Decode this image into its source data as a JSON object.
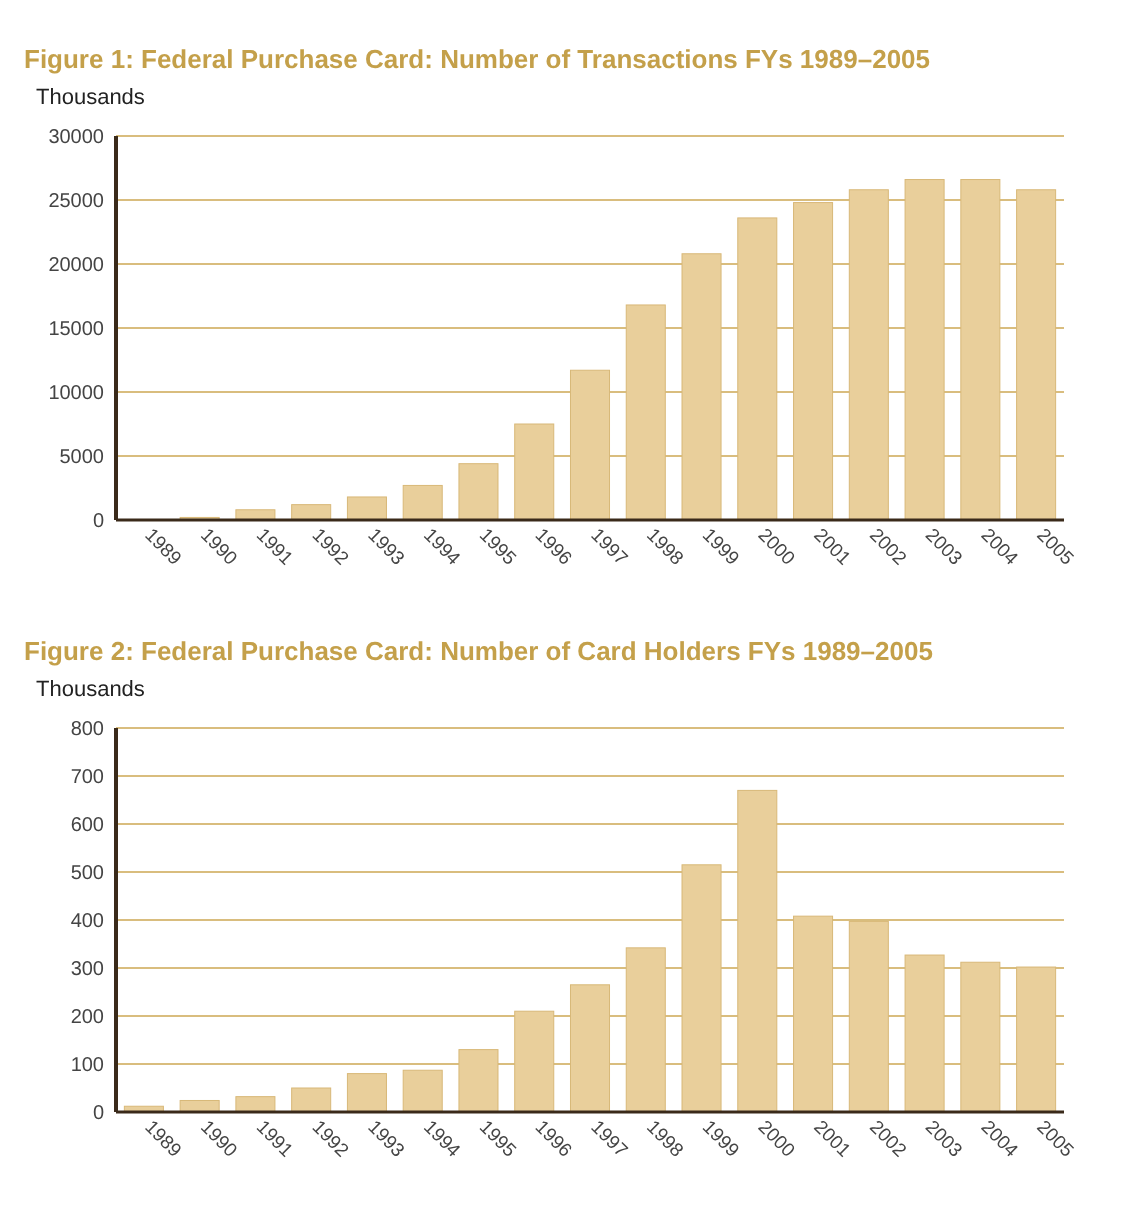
{
  "chart_data": [
    {
      "type": "bar",
      "title": "Figure 1: Federal Purchase Card: Number of Transactions FYs 1989–2005",
      "ylabel": "Thousands",
      "categories": [
        "1989",
        "1990",
        "1991",
        "1992",
        "1993",
        "1994",
        "1995",
        "1996",
        "1997",
        "1998",
        "1999",
        "2000",
        "2001",
        "2002",
        "2003",
        "2004",
        "2005"
      ],
      "values": [
        0,
        200,
        800,
        1200,
        1800,
        2700,
        4400,
        7500,
        11700,
        16800,
        20800,
        23600,
        24800,
        25800,
        26600,
        26600,
        25800
      ],
      "color": "#e9cf9b",
      "ylim": [
        0,
        30000
      ],
      "yticks": [
        0,
        5000,
        10000,
        15000,
        20000,
        25000,
        30000
      ],
      "grid": "y"
    },
    {
      "type": "bar",
      "title": "Figure 2: Federal Purchase Card: Number of Card Holders FYs 1989–2005",
      "ylabel": "Thousands",
      "categories": [
        "1989",
        "1990",
        "1991",
        "1992",
        "1993",
        "1994",
        "1995",
        "1996",
        "1997",
        "1998",
        "1999",
        "2000",
        "2001",
        "2002",
        "2003",
        "2004",
        "2005"
      ],
      "values": [
        12,
        24,
        32,
        50,
        80,
        87,
        130,
        210,
        265,
        342,
        515,
        670,
        408,
        397,
        327,
        312,
        302
      ],
      "color": "#e9cf9b",
      "ylim": [
        0,
        800
      ],
      "yticks": [
        0,
        100,
        200,
        300,
        400,
        500,
        600,
        700,
        800
      ],
      "grid": "y"
    }
  ]
}
